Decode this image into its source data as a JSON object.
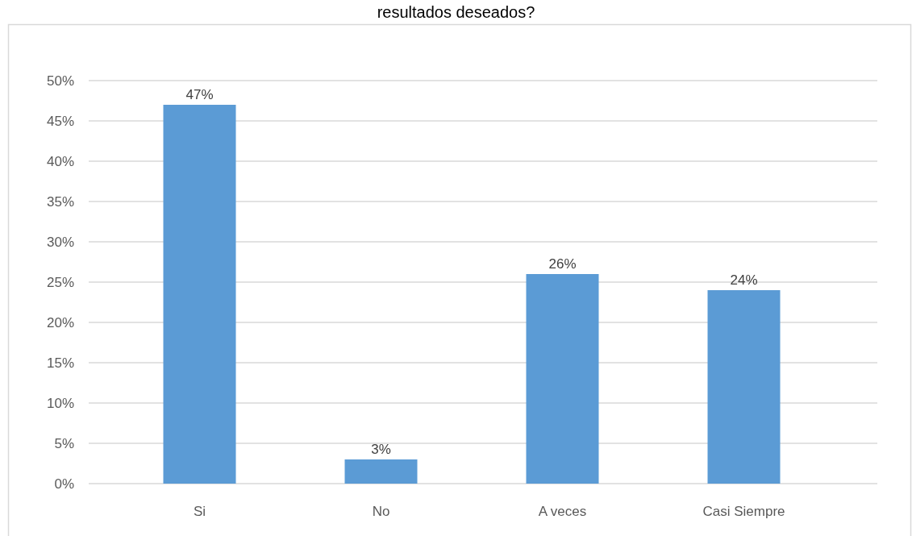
{
  "chart_data": {
    "type": "bar",
    "title": "resultados deseados?",
    "categories": [
      "Si",
      "No",
      "A veces",
      "Casi Siempre"
    ],
    "values": [
      47,
      3,
      26,
      24
    ],
    "color": "#5b9bd5",
    "value_labels": [
      "47%",
      "3%",
      "26%",
      "24%"
    ],
    "ylim": [
      0,
      50
    ],
    "yticks": [
      {
        "value": 0,
        "label": "0%"
      },
      {
        "value": 5,
        "label": "5%"
      },
      {
        "value": 10,
        "label": "10%"
      },
      {
        "value": 15,
        "label": "15%"
      },
      {
        "value": 20,
        "label": "20%"
      },
      {
        "value": 25,
        "label": "25%"
      },
      {
        "value": 30,
        "label": "30%"
      },
      {
        "value": 35,
        "label": "35%"
      },
      {
        "value": 40,
        "label": "40%"
      },
      {
        "value": 45,
        "label": "45%"
      },
      {
        "value": 50,
        "label": "50%"
      }
    ],
    "grid": true
  }
}
